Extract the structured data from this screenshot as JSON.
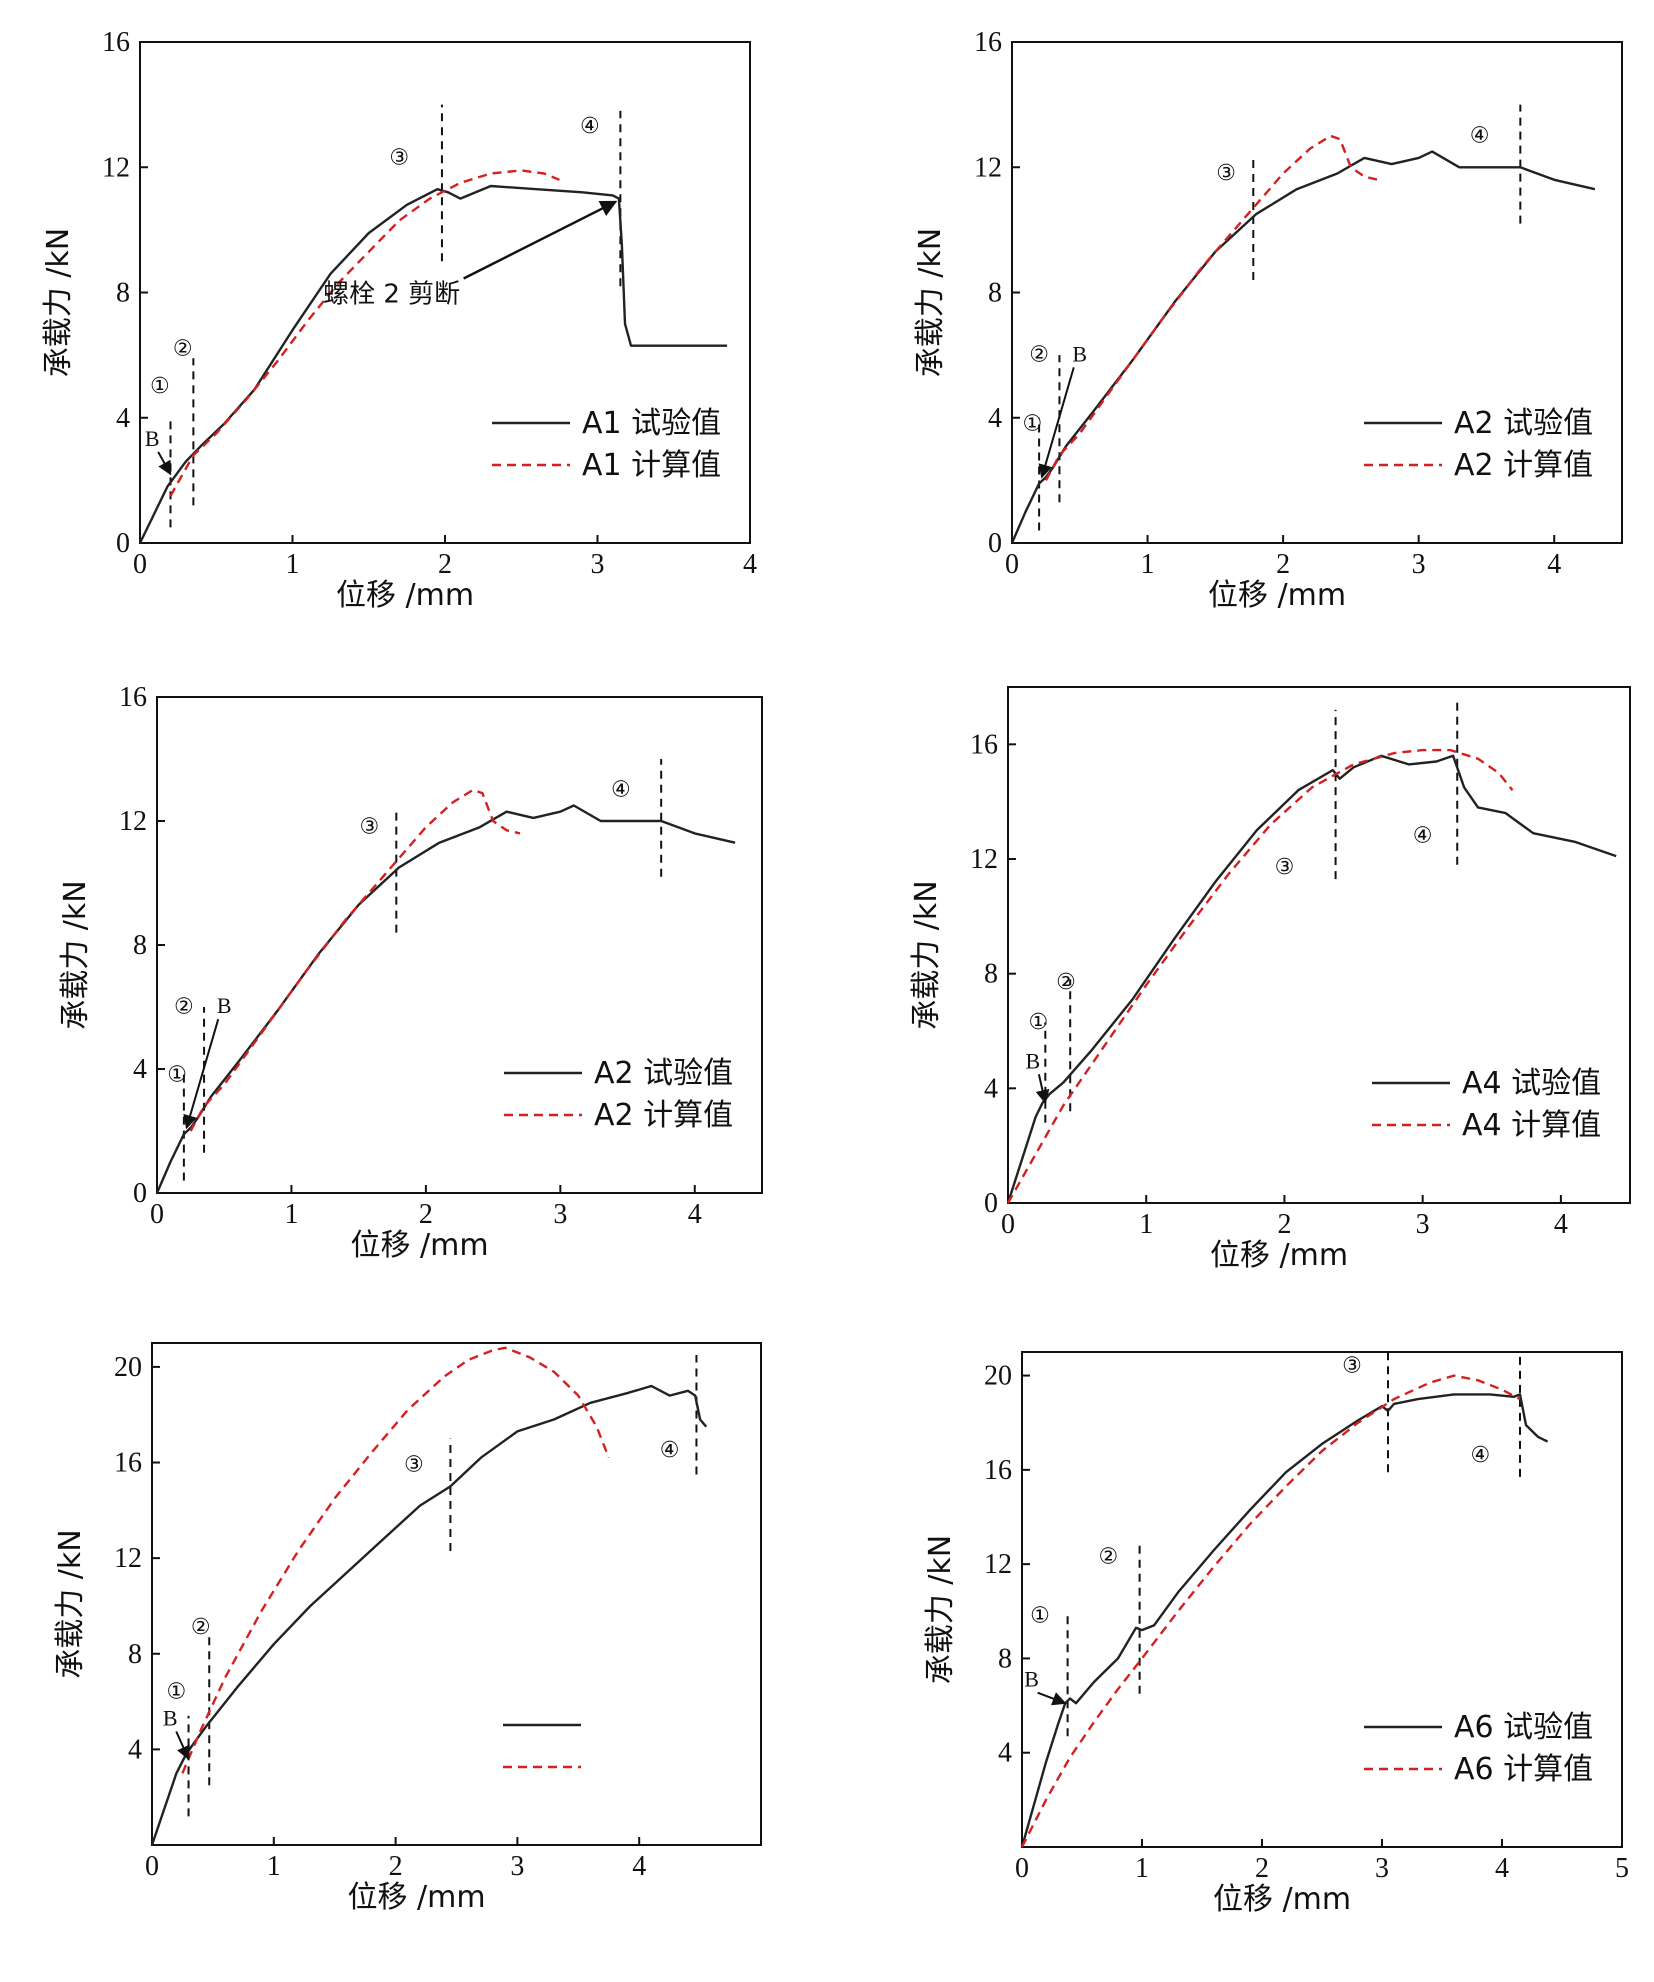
{
  "colors": {
    "experimental": "#222222",
    "calculated": "#d42020",
    "frame": "#111111"
  },
  "chart_data": [
    {
      "type": "line",
      "xlabel": "位移 /mm",
      "ylabel": "承载力 /kN",
      "xlim": [
        0,
        4
      ],
      "ylim": [
        0,
        16
      ],
      "xticks": [
        0,
        1,
        2,
        3,
        4
      ],
      "yticks": [
        0,
        4,
        8,
        12,
        16
      ],
      "legend_position": "lower-right",
      "series": [
        {
          "name": "A1 试验值",
          "style": "solid",
          "x": [
            0,
            0.08,
            0.18,
            0.24,
            0.3,
            0.4,
            0.55,
            0.75,
            1.0,
            1.25,
            1.5,
            1.75,
            1.95,
            2.02,
            2.1,
            2.3,
            2.6,
            2.9,
            3.1,
            3.14,
            3.16,
            3.18,
            3.22,
            3.3,
            3.5,
            3.7,
            3.85
          ],
          "y": [
            0,
            0.8,
            1.8,
            2.2,
            2.6,
            3.1,
            3.8,
            4.9,
            6.8,
            8.6,
            9.9,
            10.8,
            11.3,
            11.2,
            11.0,
            11.4,
            11.3,
            11.2,
            11.1,
            11.0,
            9.5,
            7.0,
            6.3,
            6.3,
            6.3,
            6.3,
            6.3
          ]
        },
        {
          "name": "A1 计算值",
          "style": "dashed",
          "x": [
            0.2,
            0.28,
            0.35,
            0.5,
            0.7,
            0.9,
            1.1,
            1.3,
            1.5,
            1.7,
            1.9,
            2.1,
            2.3,
            2.5,
            2.65,
            2.75
          ],
          "y": [
            1.5,
            2.2,
            2.8,
            3.5,
            4.6,
            5.8,
            7.1,
            8.3,
            9.3,
            10.3,
            11.0,
            11.5,
            11.8,
            11.9,
            11.8,
            11.6
          ]
        }
      ],
      "vlines": [
        {
          "x": 0.2,
          "y_range": [
            0.5,
            4.0
          ]
        },
        {
          "x": 0.35,
          "y_range": [
            1.2,
            5.9
          ]
        },
        {
          "x": 1.98,
          "y_range": [
            9.0,
            14.0
          ]
        },
        {
          "x": 3.15,
          "y_range": [
            8.2,
            13.8
          ]
        }
      ],
      "stages": [
        {
          "text": "①",
          "x": 0.13,
          "y": 5.0
        },
        {
          "text": "②",
          "x": 0.28,
          "y": 6.2
        },
        {
          "text": "③",
          "x": 1.7,
          "y": 12.3
        },
        {
          "text": "④",
          "x": 2.95,
          "y": 13.3
        }
      ],
      "point_b": {
        "label": "B",
        "x": 0.2,
        "y": 2.2,
        "text_x": 0.08,
        "text_y": 3.1
      },
      "annotation": {
        "text": "螺栓 2 剪断",
        "x": 1.65,
        "y": 8.0,
        "arrow_to": [
          3.12,
          10.9
        ]
      }
    },
    {
      "type": "line",
      "xlabel": "位移 /mm",
      "ylabel": "承载力 /kN",
      "xlim": [
        0,
        4.5
      ],
      "ylim": [
        0,
        16
      ],
      "xticks": [
        0,
        1,
        2,
        3,
        4
      ],
      "yticks": [
        0,
        4,
        8,
        12,
        16
      ],
      "legend_position": "lower-right",
      "series": [
        {
          "name": "A2 试验值",
          "style": "solid",
          "x": [
            0,
            0.1,
            0.2,
            0.25,
            0.3,
            0.4,
            0.6,
            0.9,
            1.2,
            1.5,
            1.8,
            2.1,
            2.4,
            2.6,
            2.8,
            3.0,
            3.1,
            3.3,
            3.5,
            3.75,
            4.0,
            4.3
          ],
          "y": [
            0,
            1.0,
            1.9,
            2.1,
            2.4,
            3.1,
            4.2,
            5.9,
            7.7,
            9.3,
            10.5,
            11.3,
            11.8,
            12.3,
            12.1,
            12.3,
            12.5,
            12.0,
            12.0,
            12.0,
            11.6,
            11.3
          ]
        },
        {
          "name": "A2 计算值",
          "style": "dashed",
          "x": [
            0.25,
            0.35,
            0.5,
            0.8,
            1.1,
            1.4,
            1.7,
            2.0,
            2.2,
            2.35,
            2.42,
            2.5,
            2.6,
            2.7
          ],
          "y": [
            2.0,
            2.8,
            3.5,
            5.3,
            7.1,
            8.8,
            10.3,
            11.8,
            12.6,
            13.0,
            12.9,
            12.0,
            11.7,
            11.6
          ]
        }
      ],
      "vlines": [
        {
          "x": 0.2,
          "y_range": [
            0.4,
            4.0
          ]
        },
        {
          "x": 0.35,
          "y_range": [
            1.3,
            6.0
          ]
        },
        {
          "x": 1.78,
          "y_range": [
            8.4,
            12.4
          ]
        },
        {
          "x": 3.75,
          "y_range": [
            10.2,
            14.0
          ]
        }
      ],
      "stages": [
        {
          "text": "①",
          "x": 0.15,
          "y": 3.8
        },
        {
          "text": "②",
          "x": 0.2,
          "y": 6.0
        },
        {
          "text": "③",
          "x": 1.58,
          "y": 11.8
        },
        {
          "text": "④",
          "x": 3.45,
          "y": 13.0
        }
      ],
      "point_b": {
        "label": "B",
        "x": 0.22,
        "y": 2.1,
        "text_x": 0.5,
        "text_y": 5.8
      },
      "annotation": null
    },
    {
      "type": "line",
      "xlabel": "位移 /mm",
      "ylabel": "承载力 /kN",
      "xlim": [
        0,
        4.5
      ],
      "ylim": [
        0,
        16
      ],
      "xticks": [
        0,
        1,
        2,
        3,
        4
      ],
      "yticks": [
        0,
        4,
        8,
        12,
        16
      ],
      "legend_position": "lower-right",
      "series": [
        {
          "name": "A2 试验值",
          "style": "solid",
          "x": [
            0,
            0.1,
            0.2,
            0.25,
            0.3,
            0.4,
            0.6,
            0.9,
            1.2,
            1.5,
            1.8,
            2.1,
            2.4,
            2.6,
            2.8,
            3.0,
            3.1,
            3.3,
            3.5,
            3.75,
            4.0,
            4.3
          ],
          "y": [
            0,
            1.0,
            1.9,
            2.1,
            2.4,
            3.1,
            4.2,
            5.9,
            7.7,
            9.3,
            10.5,
            11.3,
            11.8,
            12.3,
            12.1,
            12.3,
            12.5,
            12.0,
            12.0,
            12.0,
            11.6,
            11.3
          ]
        },
        {
          "name": "A2 计算值",
          "style": "dashed",
          "x": [
            0.25,
            0.35,
            0.5,
            0.8,
            1.1,
            1.4,
            1.7,
            2.0,
            2.2,
            2.35,
            2.42,
            2.5,
            2.6,
            2.7
          ],
          "y": [
            2.0,
            2.8,
            3.5,
            5.3,
            7.1,
            8.8,
            10.3,
            11.8,
            12.6,
            13.0,
            12.9,
            12.0,
            11.7,
            11.6
          ]
        }
      ],
      "vlines": [
        {
          "x": 0.2,
          "y_range": [
            0.4,
            4.0
          ]
        },
        {
          "x": 0.35,
          "y_range": [
            1.3,
            6.0
          ]
        },
        {
          "x": 1.78,
          "y_range": [
            8.4,
            12.4
          ]
        },
        {
          "x": 3.75,
          "y_range": [
            10.2,
            14.0
          ]
        }
      ],
      "stages": [
        {
          "text": "①",
          "x": 0.15,
          "y": 3.8
        },
        {
          "text": "②",
          "x": 0.2,
          "y": 6.0
        },
        {
          "text": "③",
          "x": 1.58,
          "y": 11.8
        },
        {
          "text": "④",
          "x": 3.45,
          "y": 13.0
        }
      ],
      "point_b": {
        "label": "B",
        "x": 0.22,
        "y": 2.1,
        "text_x": 0.5,
        "text_y": 5.8
      },
      "annotation": null
    },
    {
      "type": "line",
      "xlabel": "位移 /mm",
      "ylabel": "承载力 /kN",
      "xlim": [
        0,
        4.5
      ],
      "ylim": [
        0,
        18
      ],
      "xticks": [
        0,
        1,
        2,
        3,
        4
      ],
      "yticks": [
        0,
        4,
        8,
        12,
        16
      ],
      "legend_position": "lower-right",
      "series": [
        {
          "name": "A4 试验值",
          "style": "solid",
          "x": [
            0,
            0.1,
            0.2,
            0.25,
            0.3,
            0.4,
            0.6,
            0.9,
            1.2,
            1.5,
            1.8,
            2.1,
            2.35,
            2.4,
            2.5,
            2.7,
            2.9,
            3.1,
            3.22,
            3.3,
            3.4,
            3.6,
            3.8,
            4.1,
            4.4
          ],
          "y": [
            0,
            1.5,
            3.0,
            3.5,
            3.8,
            4.2,
            5.3,
            7.1,
            9.2,
            11.2,
            13.0,
            14.4,
            15.1,
            14.8,
            15.2,
            15.6,
            15.3,
            15.4,
            15.6,
            14.5,
            13.8,
            13.6,
            12.9,
            12.6,
            12.1
          ]
        },
        {
          "name": "A4 计算值",
          "style": "dashed",
          "x": [
            0,
            0.2,
            0.4,
            0.7,
            1.0,
            1.3,
            1.6,
            1.9,
            2.2,
            2.5,
            2.8,
            3.0,
            3.2,
            3.4,
            3.55,
            3.65
          ],
          "y": [
            0,
            1.7,
            3.4,
            5.5,
            7.6,
            9.6,
            11.5,
            13.2,
            14.5,
            15.3,
            15.7,
            15.8,
            15.8,
            15.5,
            15.0,
            14.4
          ]
        }
      ],
      "vlines": [
        {
          "x": 0.27,
          "y_range": [
            2.8,
            6.3
          ]
        },
        {
          "x": 0.45,
          "y_range": [
            3.2,
            7.8
          ]
        },
        {
          "x": 2.37,
          "y_range": [
            11.3,
            17.2
          ]
        },
        {
          "x": 3.25,
          "y_range": [
            11.8,
            17.5
          ]
        }
      ],
      "stages": [
        {
          "text": "①",
          "x": 0.22,
          "y": 6.3
        },
        {
          "text": "②",
          "x": 0.42,
          "y": 7.7
        },
        {
          "text": "③",
          "x": 2.0,
          "y": 11.7
        },
        {
          "text": "④",
          "x": 3.0,
          "y": 12.8
        }
      ],
      "point_b": {
        "label": "B",
        "x": 0.27,
        "y": 3.5,
        "text_x": 0.18,
        "text_y": 4.7
      },
      "annotation": null
    },
    {
      "type": "line",
      "xlabel": "位移 /mm",
      "ylabel": "承载力 /kN",
      "xlim": [
        0,
        5
      ],
      "ylim": [
        0,
        21
      ],
      "xticks": [
        0,
        1,
        2,
        3,
        4
      ],
      "yticks": [
        4,
        8,
        12,
        16,
        20
      ],
      "legend_position": "lower-right",
      "series": [
        {
          "name": "",
          "style": "solid",
          "x": [
            0,
            0.1,
            0.2,
            0.28,
            0.35,
            0.45,
            0.7,
            1.0,
            1.3,
            1.6,
            1.9,
            2.2,
            2.45,
            2.7,
            3.0,
            3.3,
            3.6,
            3.9,
            4.1,
            4.25,
            4.4,
            4.46,
            4.5,
            4.55
          ],
          "y": [
            0,
            1.5,
            3.0,
            3.8,
            4.3,
            5.0,
            6.6,
            8.4,
            10.0,
            11.4,
            12.8,
            14.2,
            15.0,
            16.2,
            17.3,
            17.8,
            18.5,
            18.9,
            19.2,
            18.8,
            19.0,
            18.8,
            17.8,
            17.5
          ]
        },
        {
          "name": "",
          "style": "dashed",
          "x": [
            0.25,
            0.4,
            0.6,
            0.9,
            1.2,
            1.5,
            1.8,
            2.1,
            2.4,
            2.6,
            2.8,
            2.9,
            3.1,
            3.3,
            3.5,
            3.65,
            3.75
          ],
          "y": [
            3.0,
            4.8,
            7.0,
            9.8,
            12.3,
            14.5,
            16.4,
            18.2,
            19.6,
            20.3,
            20.7,
            20.8,
            20.4,
            19.8,
            18.8,
            17.5,
            16.2
          ]
        }
      ],
      "vlines": [
        {
          "x": 0.3,
          "y_range": [
            1.2,
            5.4
          ]
        },
        {
          "x": 0.47,
          "y_range": [
            2.5,
            8.8
          ]
        },
        {
          "x": 2.45,
          "y_range": [
            12.3,
            17.0
          ]
        },
        {
          "x": 4.47,
          "y_range": [
            15.5,
            20.5
          ]
        }
      ],
      "stages": [
        {
          "text": "①",
          "x": 0.2,
          "y": 6.4
        },
        {
          "text": "②",
          "x": 0.4,
          "y": 9.1
        },
        {
          "text": "③",
          "x": 2.15,
          "y": 15.9
        },
        {
          "text": "④",
          "x": 4.25,
          "y": 16.5
        }
      ],
      "point_b": {
        "label": "B",
        "x": 0.3,
        "y": 3.6,
        "text_x": 0.15,
        "text_y": 5.0
      },
      "annotation": null
    },
    {
      "type": "line",
      "xlabel": "位移 /mm",
      "ylabel": "承载力 /kN",
      "xlim": [
        0,
        5
      ],
      "ylim": [
        0,
        21
      ],
      "xticks": [
        0,
        1,
        2,
        3,
        4,
        5
      ],
      "yticks": [
        4,
        8,
        12,
        16,
        20
      ],
      "legend_position": "lower-right",
      "series": [
        {
          "name": "A6 试验值",
          "style": "solid",
          "x": [
            0,
            0.1,
            0.2,
            0.3,
            0.36,
            0.4,
            0.45,
            0.6,
            0.8,
            0.95,
            1.0,
            1.1,
            1.3,
            1.6,
            1.9,
            2.2,
            2.5,
            2.8,
            3.0,
            3.05,
            3.1,
            3.3,
            3.6,
            3.9,
            4.1,
            4.15,
            4.2,
            4.3,
            4.38
          ],
          "y": [
            0,
            1.8,
            3.6,
            5.2,
            6.1,
            6.3,
            6.1,
            7.0,
            8.0,
            9.3,
            9.2,
            9.4,
            10.8,
            12.6,
            14.3,
            15.9,
            17.1,
            18.1,
            18.7,
            18.5,
            18.8,
            19.0,
            19.2,
            19.2,
            19.1,
            19.2,
            17.9,
            17.4,
            17.2
          ]
        },
        {
          "name": "A6 计算值",
          "style": "dashed",
          "x": [
            0,
            0.2,
            0.4,
            0.6,
            0.8,
            1.0,
            1.3,
            1.6,
            1.9,
            2.2,
            2.5,
            2.8,
            3.1,
            3.4,
            3.6,
            3.8,
            4.0,
            4.15
          ],
          "y": [
            0,
            2.0,
            3.8,
            5.3,
            6.7,
            8.0,
            10.0,
            11.9,
            13.7,
            15.3,
            16.8,
            18.0,
            19.0,
            19.7,
            20.0,
            19.8,
            19.4,
            19.0
          ]
        }
      ],
      "vlines": [
        {
          "x": 0.38,
          "y_range": [
            4.7,
            10.0
          ]
        },
        {
          "x": 0.98,
          "y_range": [
            6.5,
            12.8
          ]
        },
        {
          "x": 3.05,
          "y_range": [
            15.9,
            21.0
          ]
        },
        {
          "x": 4.15,
          "y_range": [
            15.7,
            20.9
          ]
        }
      ],
      "stages": [
        {
          "text": "①",
          "x": 0.15,
          "y": 9.8
        },
        {
          "text": "②",
          "x": 0.72,
          "y": 12.3
        },
        {
          "text": "③",
          "x": 2.75,
          "y": 20.4
        },
        {
          "text": "④",
          "x": 3.82,
          "y": 16.6
        }
      ],
      "point_b": {
        "label": "B",
        "x": 0.36,
        "y": 6.1,
        "text_x": 0.08,
        "text_y": 6.8
      },
      "annotation": null
    }
  ]
}
